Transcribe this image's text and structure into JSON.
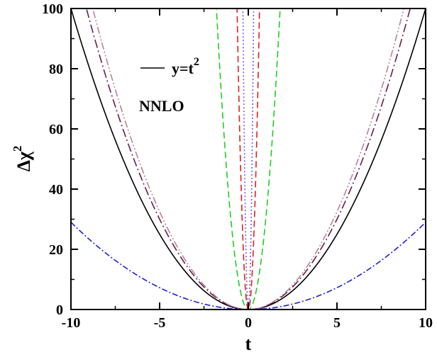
{
  "chart_data": {
    "type": "line",
    "xlabel": "t",
    "ylabel_base": "Δχ",
    "ylabel_sup": "2",
    "xlim": [
      -10,
      10
    ],
    "ylim": [
      0,
      100
    ],
    "x_ticks": [
      -10,
      -5,
      0,
      5,
      10
    ],
    "y_ticks": [
      0,
      20,
      40,
      60,
      80,
      100
    ],
    "legend": {
      "label_base": "y=t",
      "label_sup": "2",
      "color": "#000000",
      "placement": "upper-left"
    },
    "annotation": "NNLO",
    "series": [
      {
        "name": "y=t^2",
        "shape": "parabola",
        "a": 1.0,
        "c": 0,
        "color": "#000000",
        "dash": ""
      },
      {
        "shape": "parabola",
        "a": 1.2,
        "c": 0,
        "color": "#6b1a4f",
        "dash": "12,4,2,4"
      },
      {
        "shape": "parabola",
        "a": 1.3,
        "c": 0,
        "color": "#b8868f",
        "dash": "10,3,2,3,2,3"
      },
      {
        "shape": "parabola",
        "a": 0.29,
        "c": 0,
        "color": "#1f1fd0",
        "dash": "8,3,2,3"
      },
      {
        "shape": "parabola",
        "a": 31,
        "c": 0,
        "color": "#22cc22",
        "dash": "9,5"
      },
      {
        "shape": "parabola",
        "a": 250,
        "c": 0,
        "color": "#e02020",
        "dash": "9,5"
      },
      {
        "shape": "parabola",
        "a": 1100,
        "c": 0,
        "color": "#7a5ae0",
        "dash": "2,3"
      }
    ]
  }
}
